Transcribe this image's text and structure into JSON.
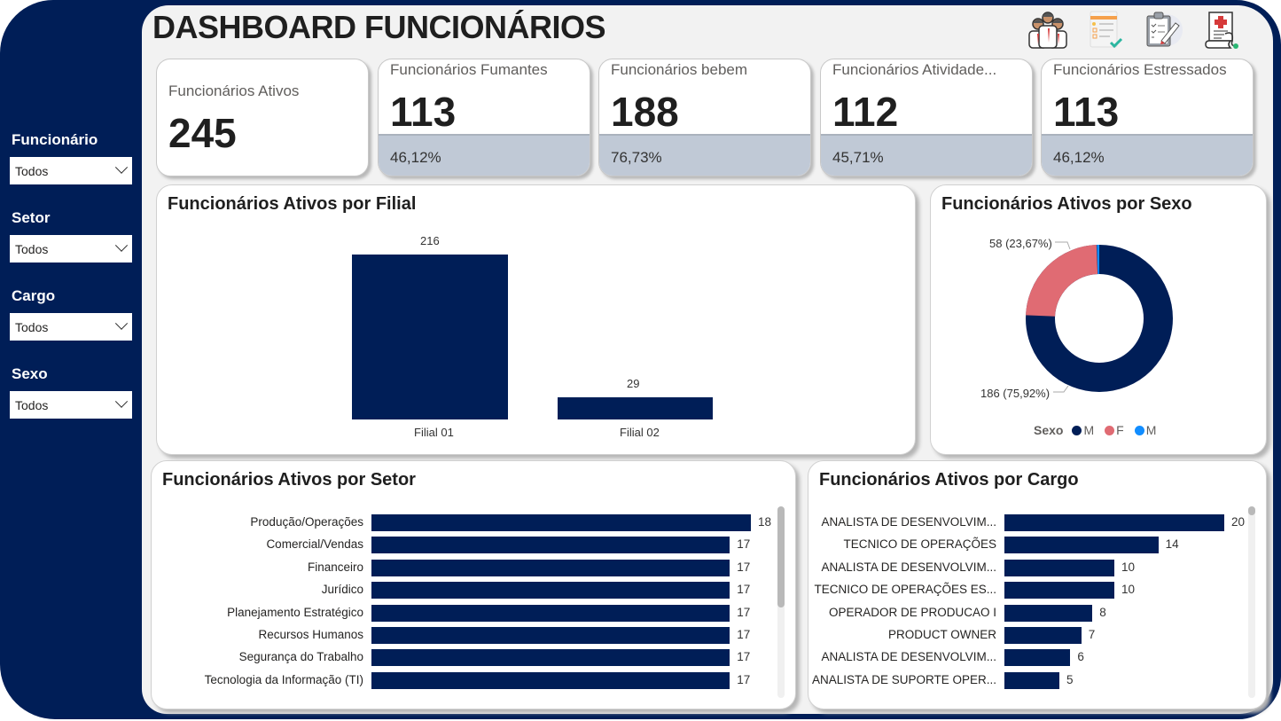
{
  "header": {
    "title": "DASHBOARD FUNCIONÁRIOS",
    "icons": [
      "team-icon",
      "checklist-icon",
      "clipboard-icon",
      "medical-certificate-icon"
    ]
  },
  "filters": [
    {
      "label": "Funcionário",
      "value": "Todos"
    },
    {
      "label": "Setor",
      "value": "Todos"
    },
    {
      "label": "Cargo",
      "value": "Todos"
    },
    {
      "label": "Sexo",
      "value": "Todos"
    }
  ],
  "kpis": [
    {
      "title": "Funcionários Ativos",
      "value": "245",
      "pct": null
    },
    {
      "title": "Funcionários Fumantes",
      "value": "113",
      "pct": "46,12%"
    },
    {
      "title": "Funcionários bebem",
      "value": "188",
      "pct": "76,73%"
    },
    {
      "title": "Funcionários Atividade...",
      "value": "112",
      "pct": "45,71%"
    },
    {
      "title": "Funcionários Estressados",
      "value": "113",
      "pct": "46,12%"
    }
  ],
  "colors": {
    "primary": "#001e57",
    "female": "#e06b73",
    "other": "#118dff",
    "kpi_band": "#c0c9d6",
    "canvas": "#f2f2f2"
  },
  "chart_data": [
    {
      "type": "bar",
      "title": "Funcionários Ativos por Filial",
      "categories": [
        "Filial 01",
        "Filial 02"
      ],
      "values": [
        216,
        29
      ],
      "value_labels": [
        "216",
        "29"
      ],
      "xlabel": "",
      "ylabel": "",
      "grid": false
    },
    {
      "type": "pie",
      "subtype": "donut",
      "title": "Funcionários Ativos por Sexo",
      "legend_title": "Sexo",
      "categories": [
        "M",
        "F",
        "M"
      ],
      "values": [
        186,
        58,
        1
      ],
      "percent": [
        75.92,
        23.67,
        0.41
      ],
      "value_labels": [
        "186 (75,92%)",
        "58 (23,67%)"
      ],
      "colors": [
        "#001e57",
        "#e06b73",
        "#118dff"
      ],
      "legend_position": "bottom"
    },
    {
      "type": "bar",
      "orientation": "horizontal",
      "title": "Funcionários Ativos por Setor",
      "categories": [
        "Produção/Operações",
        "Comercial/Vendas",
        "Financeiro",
        "Jurídico",
        "Planejamento Estratégico",
        "Recursos Humanos",
        "Segurança do Trabalho",
        "Tecnologia da Informação (TI)"
      ],
      "values": [
        18,
        17,
        17,
        17,
        17,
        17,
        17,
        17
      ],
      "value_labels": [
        "18",
        "17",
        "17",
        "17",
        "17",
        "17",
        "17",
        "17"
      ],
      "scrollable": true
    },
    {
      "type": "bar",
      "orientation": "horizontal",
      "title": "Funcionários Ativos por Cargo",
      "categories": [
        "ANALISTA DE DESENVOLVIM...",
        "TECNICO DE OPERAÇÕES",
        "ANALISTA DE DESENVOLVIM...",
        "TECNICO DE OPERAÇÕES ES...",
        "OPERADOR DE PRODUCAO I",
        "PRODUCT OWNER",
        "ANALISTA DE DESENVOLVIM...",
        "ANALISTA DE SUPORTE OPER..."
      ],
      "values": [
        20,
        14,
        10,
        10,
        8,
        7,
        6,
        5
      ],
      "value_labels": [
        "20",
        "14",
        "10",
        "10",
        "8",
        "7",
        "6",
        "5"
      ],
      "scrollable": true
    }
  ]
}
